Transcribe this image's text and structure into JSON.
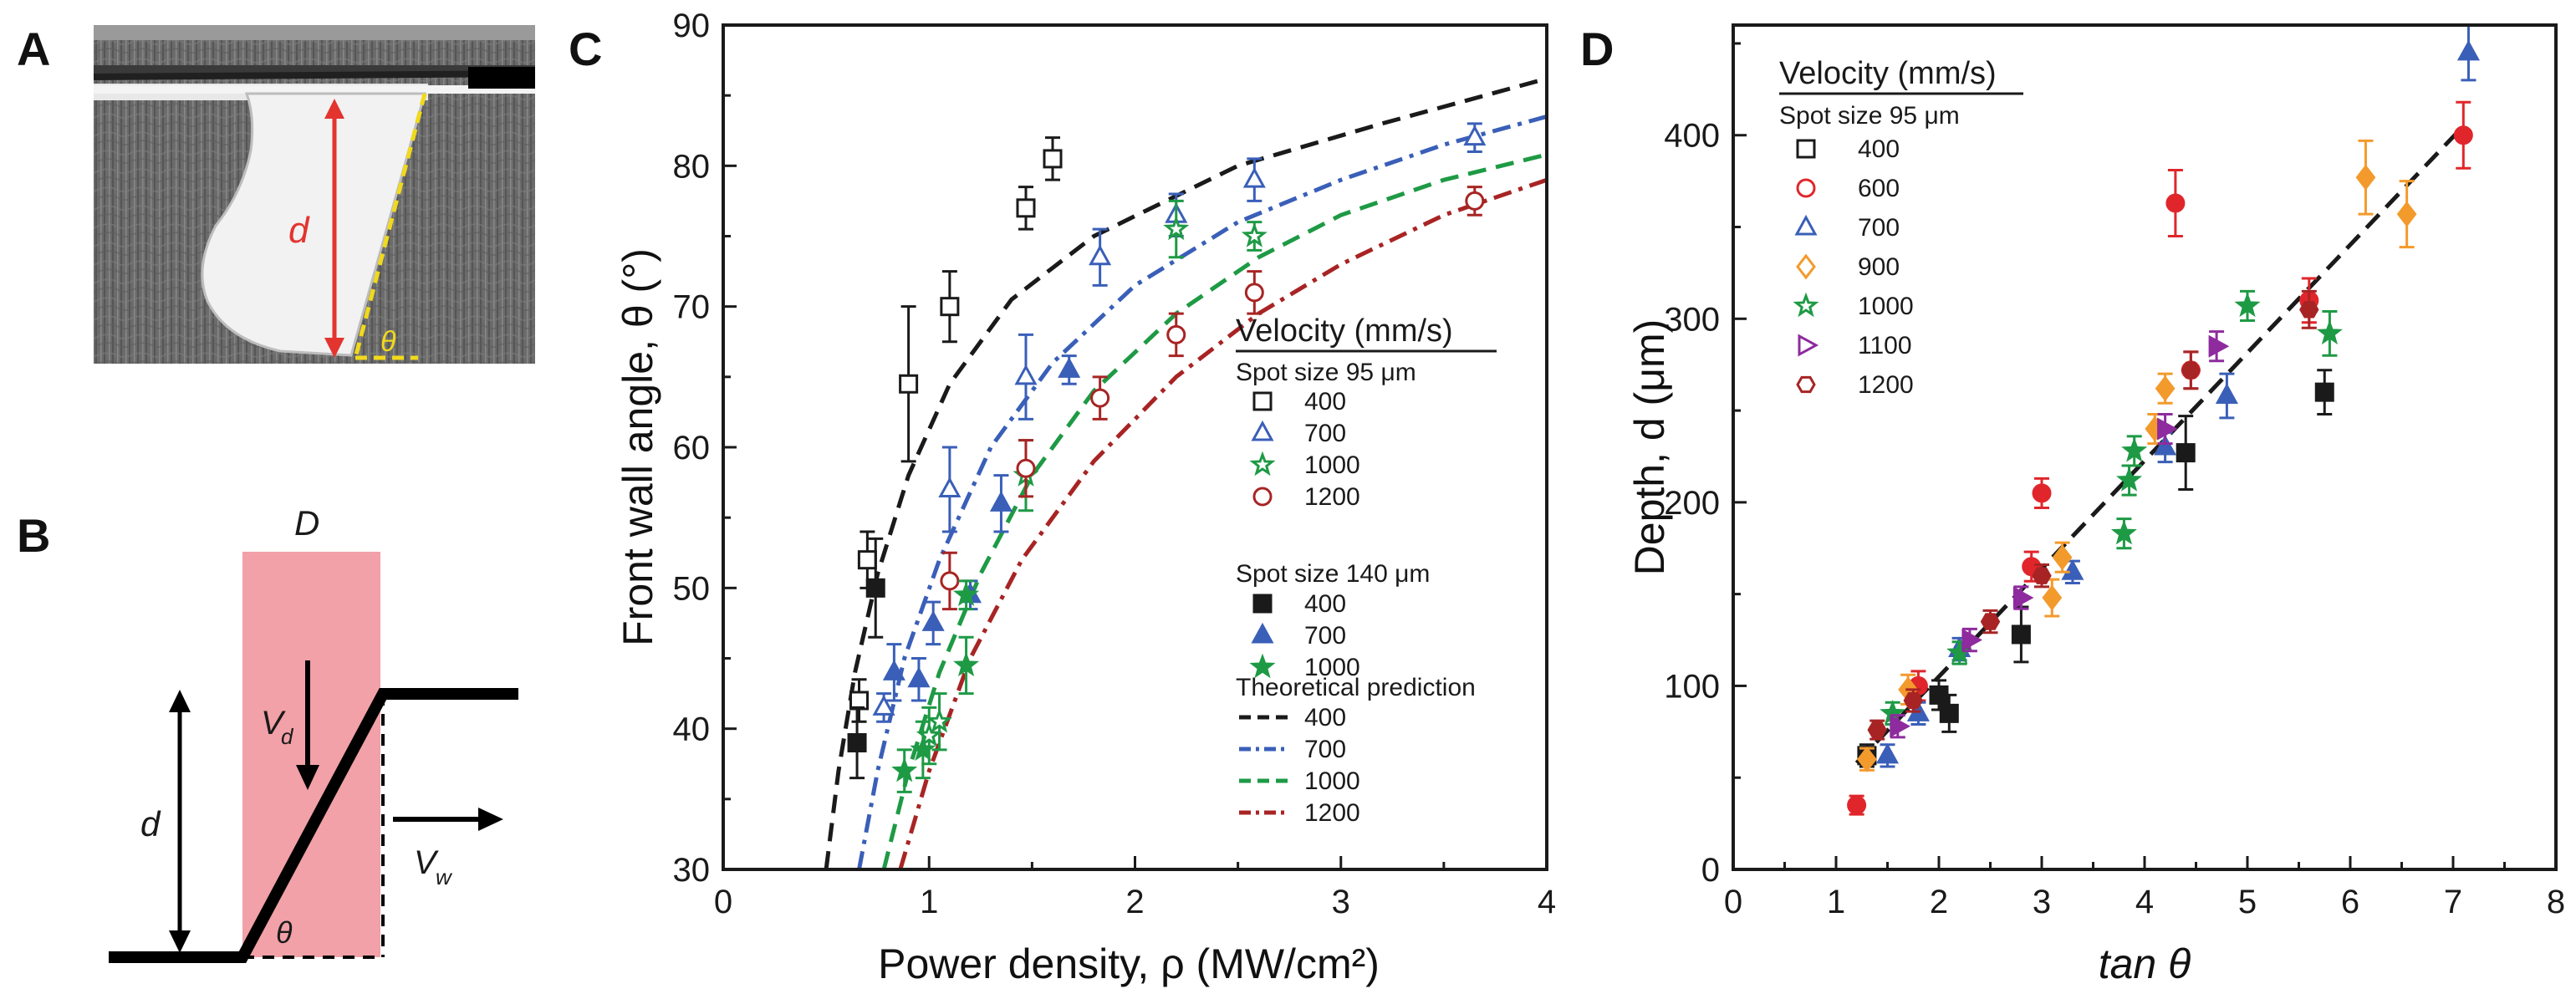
{
  "panels": {
    "a": {
      "letter": "A",
      "label_d": "d",
      "label_theta": "θ"
    },
    "b": {
      "letter": "B",
      "label_D": "D",
      "label_d": "d",
      "label_vd": "V",
      "label_vd_sub": "d",
      "label_vw": "V",
      "label_vw_sub": "w",
      "label_theta": "θ"
    },
    "c": {
      "letter": "C"
    },
    "d": {
      "letter": "D"
    }
  },
  "colors": {
    "400": "#1a1a1a",
    "600": "#e0262b",
    "700": "#3a5fb8",
    "900": "#f39a2c",
    "1000": "#1e9a45",
    "1100": "#8e2b9e",
    "1200": "#a82424"
  },
  "chart_data": [
    {
      "id": "C",
      "type": "scatter",
      "title": "",
      "xlabel": "Power density, ρ (MW/cm²)",
      "ylabel": "Front wall angle, θ (°)",
      "xlim": [
        0,
        4
      ],
      "ylim": [
        30,
        90
      ],
      "xticks": [
        0,
        1,
        2,
        3,
        4
      ],
      "yticks": [
        30,
        40,
        50,
        60,
        70,
        80,
        90
      ],
      "legend": {
        "title": "Velocity (mm/s)",
        "group1": "Spot size 95 μm",
        "group2": "Spot size 140 μm",
        "group3": "Theoretical prediction",
        "placement": "right"
      },
      "series": [
        {
          "name": "400",
          "group": "Spot size 95 μm",
          "marker": "square-open",
          "color_key": "400",
          "points": [
            [
              0.66,
              42,
              1.5
            ],
            [
              0.7,
              52,
              2
            ],
            [
              0.9,
              64.5,
              5.5
            ],
            [
              1.1,
              70,
              2.5
            ],
            [
              1.47,
              77,
              1.5
            ],
            [
              1.6,
              80.5,
              1.5
            ]
          ]
        },
        {
          "name": "700",
          "group": "Spot size 95 μm",
          "marker": "triangle-open",
          "color_key": "700",
          "points": [
            [
              0.78,
              41.5,
              1
            ],
            [
              1.1,
              57,
              3
            ],
            [
              1.47,
              65,
              3
            ],
            [
              1.83,
              73.5,
              2
            ],
            [
              2.2,
              76.5,
              1.5
            ],
            [
              2.58,
              79,
              1.5
            ],
            [
              3.65,
              82,
              1
            ]
          ]
        },
        {
          "name": "1000",
          "group": "Spot size 95 μm",
          "marker": "star-open",
          "color_key": "1000",
          "points": [
            [
              1.0,
              39.5,
              2
            ],
            [
              1.05,
              40.5,
              2
            ],
            [
              1.47,
              58,
              2.5
            ],
            [
              2.2,
              75.5,
              2
            ],
            [
              2.58,
              75,
              1
            ]
          ]
        },
        {
          "name": "1200",
          "group": "Spot size 95 μm",
          "marker": "circle-open",
          "color_key": "1200",
          "points": [
            [
              1.1,
              50.5,
              2
            ],
            [
              1.47,
              58.5,
              2
            ],
            [
              1.83,
              63.5,
              1.5
            ],
            [
              2.2,
              68,
              1.5
            ],
            [
              2.58,
              71,
              1.5
            ],
            [
              3.65,
              77.5,
              1
            ]
          ]
        },
        {
          "name": "400",
          "group": "Spot size 140 μm",
          "marker": "square-filled",
          "color_key": "400",
          "points": [
            [
              0.65,
              39,
              2.5
            ],
            [
              0.74,
              50,
              3.5
            ]
          ]
        },
        {
          "name": "700",
          "group": "Spot size 140 μm",
          "marker": "triangle-filled",
          "color_key": "700",
          "points": [
            [
              0.83,
              44,
              2
            ],
            [
              0.95,
              43.5,
              1.5
            ],
            [
              1.02,
              47.5,
              1.5
            ],
            [
              1.2,
              49.5,
              1
            ],
            [
              1.35,
              56,
              2
            ],
            [
              1.68,
              65.5,
              1
            ]
          ]
        },
        {
          "name": "1000",
          "group": "Spot size 140 μm",
          "marker": "star-filled",
          "color_key": "1000",
          "points": [
            [
              0.88,
              37,
              1.5
            ],
            [
              0.97,
              38.5,
              2
            ],
            [
              1.18,
              44.5,
              2
            ],
            [
              1.18,
              49.5,
              1
            ]
          ]
        }
      ],
      "theory": [
        {
          "name": "400",
          "dash": "dash",
          "color_key": "400",
          "points": [
            [
              0.5,
              30
            ],
            [
              0.56,
              37
            ],
            [
              0.64,
              44
            ],
            [
              0.75,
              51
            ],
            [
              0.9,
              58
            ],
            [
              1.1,
              64.5
            ],
            [
              1.4,
              70.5
            ],
            [
              1.8,
              75
            ],
            [
              2.5,
              80
            ],
            [
              3.2,
              83
            ],
            [
              4.0,
              86.2
            ]
          ]
        },
        {
          "name": "700",
          "dash": "dashdot",
          "color_key": "700",
          "points": [
            [
              0.66,
              30
            ],
            [
              0.75,
              37
            ],
            [
              0.88,
              45
            ],
            [
              1.05,
              52
            ],
            [
              1.3,
              60
            ],
            [
              1.6,
              66
            ],
            [
              2.0,
              71.5
            ],
            [
              2.5,
              76
            ],
            [
              3.0,
              79
            ],
            [
              3.5,
              81.5
            ],
            [
              4.0,
              83.5
            ]
          ]
        },
        {
          "name": "1000",
          "dash": "dash",
          "color_key": "1000",
          "points": [
            [
              0.78,
              30
            ],
            [
              0.9,
              37
            ],
            [
              1.05,
              44
            ],
            [
              1.25,
              51
            ],
            [
              1.5,
              58
            ],
            [
              1.8,
              64
            ],
            [
              2.2,
              69.5
            ],
            [
              2.6,
              73.5
            ],
            [
              3.0,
              76.5
            ],
            [
              3.5,
              79
            ],
            [
              4.0,
              80.8
            ]
          ]
        },
        {
          "name": "1200",
          "dash": "dashdot",
          "color_key": "1200",
          "points": [
            [
              0.86,
              30
            ],
            [
              1.0,
              37
            ],
            [
              1.2,
              45
            ],
            [
              1.45,
              52
            ],
            [
              1.8,
              59
            ],
            [
              2.2,
              65
            ],
            [
              2.6,
              69.5
            ],
            [
              3.0,
              73
            ],
            [
              3.5,
              76.5
            ],
            [
              4.0,
              79
            ]
          ]
        }
      ]
    },
    {
      "id": "D",
      "type": "scatter",
      "title": "",
      "xlabel": "tan θ",
      "ylabel": "Depth, d (μm)",
      "xlim": [
        0,
        8
      ],
      "ylim": [
        0,
        460
      ],
      "xticks": [
        0,
        1,
        2,
        3,
        4,
        5,
        6,
        7,
        8
      ],
      "yticks": [
        0,
        100,
        200,
        300,
        400
      ],
      "legend": {
        "title": "Velocity (mm/s)",
        "group1": "Spot size 95 μm",
        "placement": "top-left"
      },
      "series": [
        {
          "name": "400",
          "marker": "square",
          "color_key": "400",
          "points": [
            [
              2.0,
              95,
              8
            ],
            [
              2.1,
              85,
              10
            ],
            [
              2.8,
              128,
              15
            ],
            [
              4.4,
              227,
              20
            ],
            [
              5.75,
              260,
              12
            ],
            [
              1.3,
              62,
              6
            ]
          ]
        },
        {
          "name": "600",
          "marker": "circle",
          "color_key": "600",
          "points": [
            [
              1.2,
              35,
              5
            ],
            [
              1.8,
              100,
              8
            ],
            [
              2.9,
              165,
              8
            ],
            [
              3.0,
              205,
              8
            ],
            [
              4.3,
              363,
              18
            ],
            [
              5.6,
              310,
              12
            ],
            [
              7.1,
              400,
              18
            ],
            [
              4.45,
              272,
              10
            ]
          ]
        },
        {
          "name": "700",
          "marker": "triangle",
          "color_key": "700",
          "points": [
            [
              1.5,
              62,
              6
            ],
            [
              1.8,
              85,
              6
            ],
            [
              2.2,
              120,
              6
            ],
            [
              3.3,
              162,
              6
            ],
            [
              4.8,
              258,
              12
            ],
            [
              7.15,
              445,
              15
            ],
            [
              4.2,
              230,
              8
            ]
          ]
        },
        {
          "name": "900",
          "marker": "diamond",
          "color_key": "900",
          "points": [
            [
              1.3,
              60,
              6
            ],
            [
              1.7,
              98,
              8
            ],
            [
              3.1,
              148,
              10
            ],
            [
              3.2,
              170,
              8
            ],
            [
              4.2,
              262,
              8
            ],
            [
              6.15,
              377,
              20
            ],
            [
              6.55,
              357,
              18
            ],
            [
              4.1,
              240,
              8
            ]
          ]
        },
        {
          "name": "1000",
          "marker": "star",
          "color_key": "1000",
          "points": [
            [
              1.55,
              85,
              6
            ],
            [
              2.2,
              118,
              6
            ],
            [
              3.8,
              183,
              8
            ],
            [
              3.85,
              212,
              8
            ],
            [
              3.9,
              228,
              8
            ],
            [
              5.0,
              307,
              8
            ],
            [
              5.8,
              292,
              12
            ]
          ]
        },
        {
          "name": "1100",
          "marker": "triangle-right",
          "color_key": "1100",
          "points": [
            [
              1.6,
              78,
              6
            ],
            [
              2.3,
              125,
              6
            ],
            [
              2.8,
              148,
              6
            ],
            [
              4.2,
              240,
              8
            ],
            [
              4.7,
              285,
              8
            ]
          ]
        },
        {
          "name": "1200",
          "marker": "hexagon",
          "color_key": "1200",
          "points": [
            [
              1.4,
              76,
              5
            ],
            [
              1.75,
              92,
              6
            ],
            [
              2.5,
              135,
              6
            ],
            [
              3.0,
              160,
              6
            ],
            [
              4.45,
              272,
              10
            ],
            [
              5.6,
              305,
              10
            ]
          ]
        }
      ],
      "fit": {
        "dash": "dash",
        "points": [
          [
            1.2,
            58
          ],
          [
            7.1,
            405
          ]
        ]
      }
    }
  ]
}
